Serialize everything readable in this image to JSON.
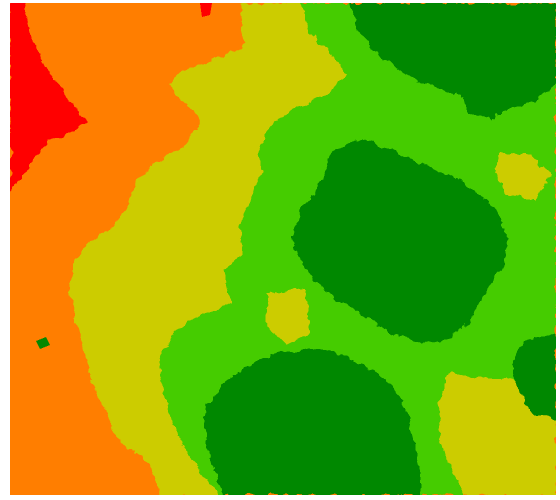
{
  "map": {
    "type": "classified-zone-raster",
    "zone_classes": [
      {
        "level": 0,
        "color": "#ff0000",
        "name": "red-zone"
      },
      {
        "level": 1,
        "color": "#ff7e00",
        "name": "orange-zone"
      },
      {
        "level": 2,
        "color": "#cccc00",
        "name": "yellow-zone"
      },
      {
        "level": 3,
        "color": "#44cc00",
        "name": "light-green-zone"
      },
      {
        "level": 4,
        "color": "#038800",
        "name": "dark-green-zone"
      }
    ]
  }
}
